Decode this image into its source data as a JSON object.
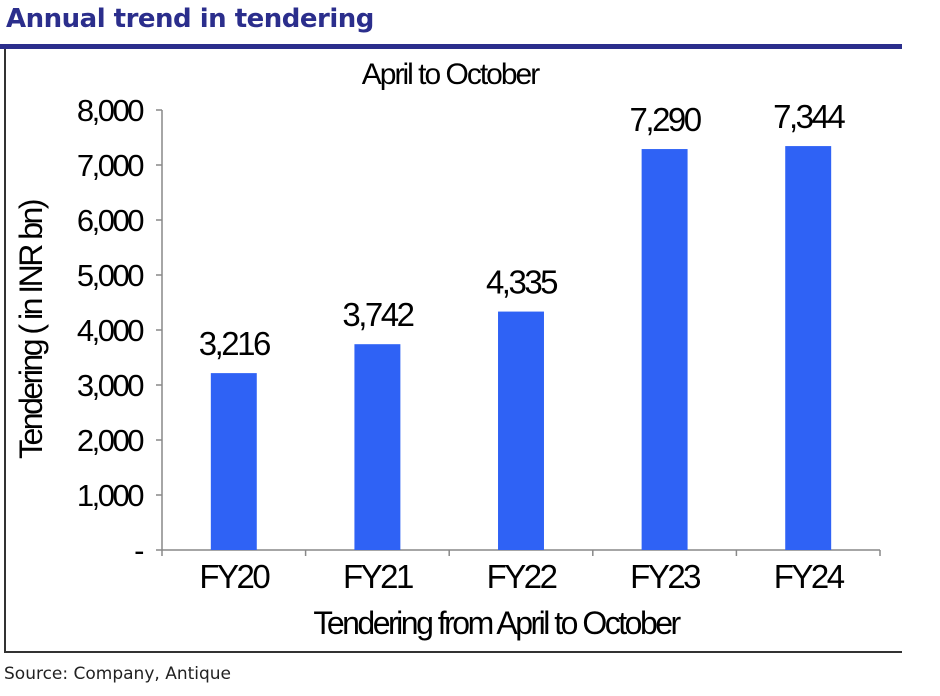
{
  "page": {
    "title": "Annual trend in tendering",
    "source": "Source:  Company,  Antique"
  },
  "colors": {
    "title": "#2b2e8c",
    "bar": "#2f62f5",
    "axis": "#888888",
    "text": "#000000"
  },
  "chart_data": {
    "type": "bar",
    "title": "April to October",
    "xlabel": "Tendering from April  to October",
    "ylabel": "Tendering ( in INR bn)",
    "categories": [
      "FY20",
      "FY21",
      "FY22",
      "FY23",
      "FY24"
    ],
    "values": [
      3216,
      3742,
      4335,
      7290,
      7344
    ],
    "value_labels": [
      "3,216",
      "3,742",
      "4,335",
      "7,290",
      "7,344"
    ],
    "ylim": [
      0,
      8000
    ],
    "yticks": [
      0,
      1000,
      2000,
      3000,
      4000,
      5000,
      6000,
      7000,
      8000
    ],
    "ytick_labels": [
      "-",
      "1,000",
      "2,000",
      "3,000",
      "4,000",
      "5,000",
      "6,000",
      "7,000",
      "8,000"
    ],
    "grid": false,
    "legend": "none"
  }
}
